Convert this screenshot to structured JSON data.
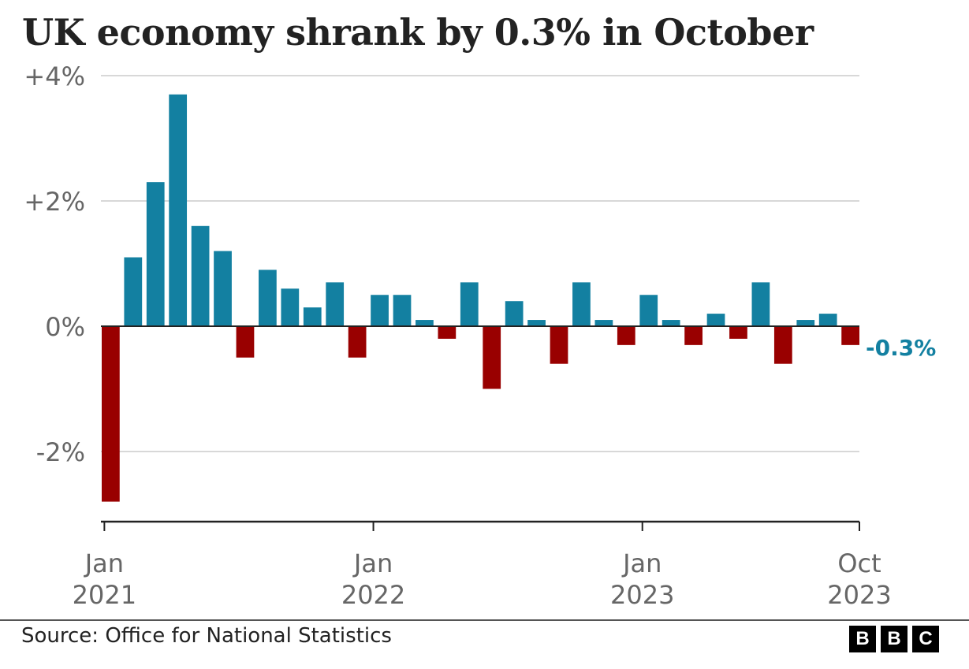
{
  "title": "UK economy shrank by 0.3% in October",
  "source": "Source: Office for National Statistics",
  "logo": {
    "letters": [
      "B",
      "B",
      "C"
    ]
  },
  "colors": {
    "positive": "#1380a1",
    "negative": "#990000",
    "grid": "#cccccc",
    "axis": "#222222",
    "text": "#666666"
  },
  "chart_data": {
    "type": "bar",
    "unit": "%",
    "ylim": [
      -2.8,
      4.0
    ],
    "y_ticks": [
      {
        "value": 4,
        "label": "+4%"
      },
      {
        "value": 2,
        "label": "+2%"
      },
      {
        "value": 0,
        "label": "0%"
      },
      {
        "value": -2,
        "label": "-2%"
      }
    ],
    "x_ticks": [
      {
        "index": 0,
        "line1": "Jan",
        "line2": "2021"
      },
      {
        "index": 12,
        "line1": "Jan",
        "line2": "2022"
      },
      {
        "index": 24,
        "line1": "Jan",
        "line2": "2023"
      },
      {
        "index": 33,
        "line1": "Oct",
        "line2": "2023"
      }
    ],
    "categories": [
      "Jan 2021",
      "Feb 2021",
      "Mar 2021",
      "Apr 2021",
      "May 2021",
      "Jun 2021",
      "Jul 2021",
      "Aug 2021",
      "Sep 2021",
      "Oct 2021",
      "Nov 2021",
      "Dec 2021",
      "Jan 2022",
      "Feb 2022",
      "Mar 2022",
      "Apr 2022",
      "May 2022",
      "Jun 2022",
      "Jul 2022",
      "Aug 2022",
      "Sep 2022",
      "Oct 2022",
      "Nov 2022",
      "Dec 2022",
      "Jan 2023",
      "Feb 2023",
      "Mar 2023",
      "Apr 2023",
      "May 2023",
      "Jun 2023",
      "Jul 2023",
      "Aug 2023",
      "Sep 2023",
      "Oct 2023"
    ],
    "values": [
      -2.8,
      1.1,
      2.3,
      3.7,
      1.6,
      1.2,
      -0.5,
      0.9,
      0.6,
      0.3,
      0.7,
      -0.5,
      0.5,
      0.5,
      0.1,
      -0.2,
      0.7,
      -1.0,
      0.4,
      0.1,
      -0.6,
      0.7,
      0.1,
      -0.3,
      0.5,
      0.1,
      -0.3,
      0.2,
      -0.2,
      0.7,
      -0.6,
      0.1,
      0.2,
      -0.3
    ],
    "annotation": {
      "index": 33,
      "text": "-0.3%"
    },
    "grid": true
  }
}
